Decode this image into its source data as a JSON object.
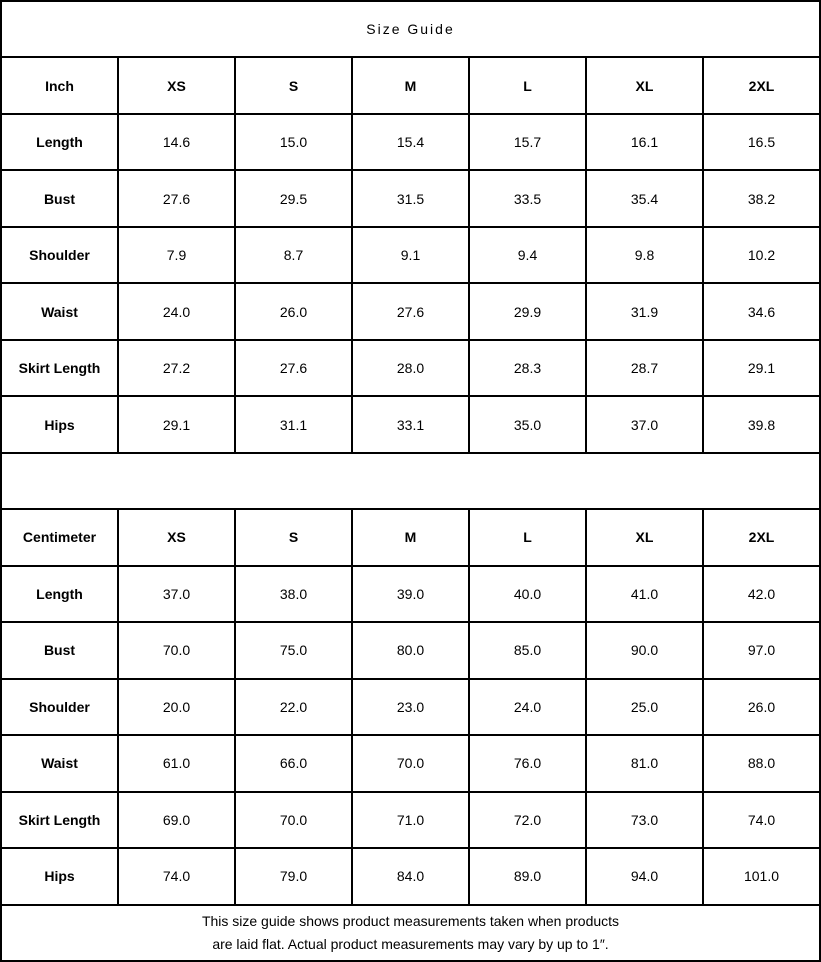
{
  "title": "Size Guide",
  "colors": {
    "border": "#000000",
    "text": "#000000",
    "background": "#ffffff"
  },
  "tables": [
    {
      "unit_label": "Inch",
      "sizes": [
        "XS",
        "S",
        "M",
        "L",
        "XL",
        "2XL"
      ],
      "rows": [
        {
          "label": "Length",
          "values": [
            "14.6",
            "15.0",
            "15.4",
            "15.7",
            "16.1",
            "16.5"
          ]
        },
        {
          "label": "Bust",
          "values": [
            "27.6",
            "29.5",
            "31.5",
            "33.5",
            "35.4",
            "38.2"
          ]
        },
        {
          "label": "Shoulder",
          "values": [
            "7.9",
            "8.7",
            "9.1",
            "9.4",
            "9.8",
            "10.2"
          ]
        },
        {
          "label": "Waist",
          "values": [
            "24.0",
            "26.0",
            "27.6",
            "29.9",
            "31.9",
            "34.6"
          ]
        },
        {
          "label": "Skirt Length",
          "values": [
            "27.2",
            "27.6",
            "28.0",
            "28.3",
            "28.7",
            "29.1"
          ]
        },
        {
          "label": "Hips",
          "values": [
            "29.1",
            "31.1",
            "33.1",
            "35.0",
            "37.0",
            "39.8"
          ]
        }
      ]
    },
    {
      "unit_label": "Centimeter",
      "sizes": [
        "XS",
        "S",
        "M",
        "L",
        "XL",
        "2XL"
      ],
      "rows": [
        {
          "label": "Length",
          "values": [
            "37.0",
            "38.0",
            "39.0",
            "40.0",
            "41.0",
            "42.0"
          ]
        },
        {
          "label": "Bust",
          "values": [
            "70.0",
            "75.0",
            "80.0",
            "85.0",
            "90.0",
            "97.0"
          ]
        },
        {
          "label": "Shoulder",
          "values": [
            "20.0",
            "22.0",
            "23.0",
            "24.0",
            "25.0",
            "26.0"
          ]
        },
        {
          "label": "Waist",
          "values": [
            "61.0",
            "66.0",
            "70.0",
            "76.0",
            "81.0",
            "88.0"
          ]
        },
        {
          "label": "Skirt Length",
          "values": [
            "69.0",
            "70.0",
            "71.0",
            "72.0",
            "73.0",
            "74.0"
          ]
        },
        {
          "label": "Hips",
          "values": [
            "74.0",
            "79.0",
            "84.0",
            "89.0",
            "94.0",
            "101.0"
          ]
        }
      ]
    }
  ],
  "footer_note": [
    "This size guide shows product measurements taken when products",
    "are laid flat. Actual product measurements may vary by up to 1″."
  ]
}
